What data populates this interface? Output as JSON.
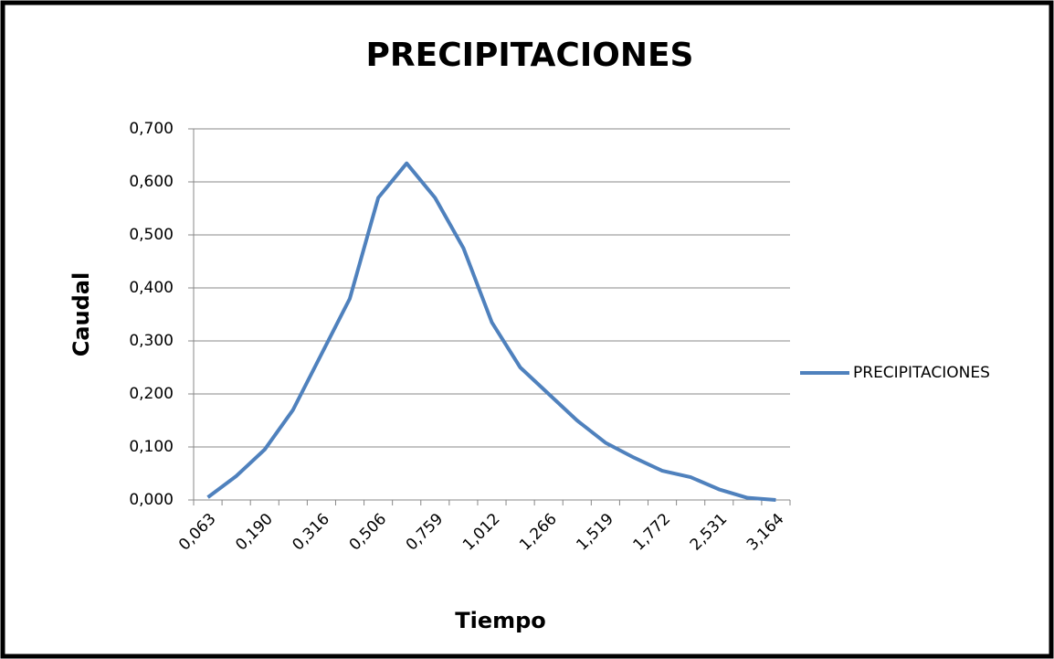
{
  "chart_data": {
    "type": "line",
    "title": "PRECIPITACIONES",
    "x_label": "Tiempo",
    "y_label": "Caudal",
    "categories": [
      "0,063",
      null,
      "0,190",
      null,
      "0,316",
      null,
      "0,506",
      null,
      "0,759",
      null,
      "1,012",
      null,
      "1,266",
      null,
      "1,519",
      null,
      "1,772",
      null,
      "2,531",
      null,
      "3,164"
    ],
    "series": [
      {
        "name": "PRECIPITACIONES",
        "color": "#4f81bd",
        "values": [
          0.005,
          0.045,
          0.095,
          0.17,
          0.275,
          0.38,
          0.57,
          0.635,
          0.57,
          0.475,
          0.335,
          0.25,
          0.2,
          0.15,
          0.108,
          0.08,
          0.055,
          0.043,
          0.02,
          0.004,
          0.0
        ]
      }
    ],
    "ylim": [
      0,
      0.7
    ],
    "yticks": [
      {
        "value": 0,
        "label": "0,000"
      },
      {
        "value": 0.1,
        "label": "0,100"
      },
      {
        "value": 0.2,
        "label": "0,200"
      },
      {
        "value": 0.3,
        "label": "0,300"
      },
      {
        "value": 0.4,
        "label": "0,400"
      },
      {
        "value": 0.5,
        "label": "0,500"
      },
      {
        "value": 0.6,
        "label": "0,600"
      },
      {
        "value": 0.7,
        "label": "0,700"
      }
    ],
    "grid": true,
    "legend": "right"
  }
}
